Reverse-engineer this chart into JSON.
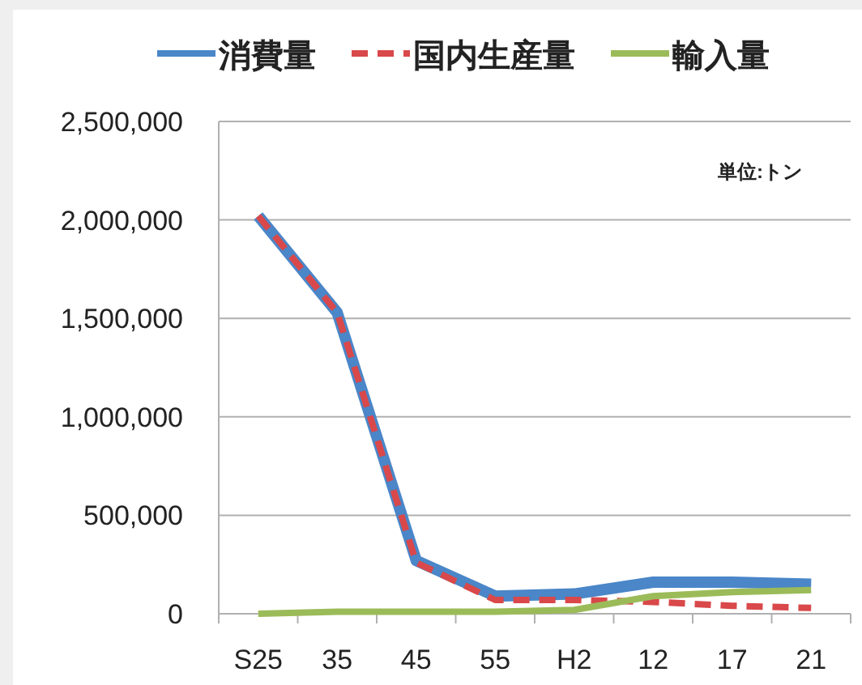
{
  "chart_data": {
    "type": "line",
    "categories": [
      "S25",
      "35",
      "45",
      "55",
      "H2",
      "12",
      "17",
      "21"
    ],
    "series": [
      {
        "name": "消費量",
        "color": "#4a86c8",
        "values": [
          2020000,
          1530000,
          270000,
          90000,
          100000,
          160000,
          160000,
          150000
        ]
      },
      {
        "name": "国内生産量",
        "color": "#d9484a",
        "line_style": "dashed",
        "values": [
          2020000,
          1530000,
          260000,
          70000,
          70000,
          60000,
          40000,
          30000
        ]
      },
      {
        "name": "輸入量",
        "color": "#9bbb59",
        "values": [
          0,
          10000,
          10000,
          10000,
          20000,
          90000,
          110000,
          120000
        ]
      }
    ],
    "ylim": [
      0,
      2500000
    ],
    "yticks": [
      {
        "value": 0,
        "label": "0"
      },
      {
        "value": 500000,
        "label": "500,000"
      },
      {
        "value": 1000000,
        "label": "1,000,000"
      },
      {
        "value": 1500000,
        "label": "1,500,000"
      },
      {
        "value": 2000000,
        "label": "2,000,000"
      },
      {
        "value": 2500000,
        "label": "2,500,000"
      }
    ],
    "grid": "y",
    "legend": "top",
    "annotations": [
      "単位:トン"
    ]
  }
}
